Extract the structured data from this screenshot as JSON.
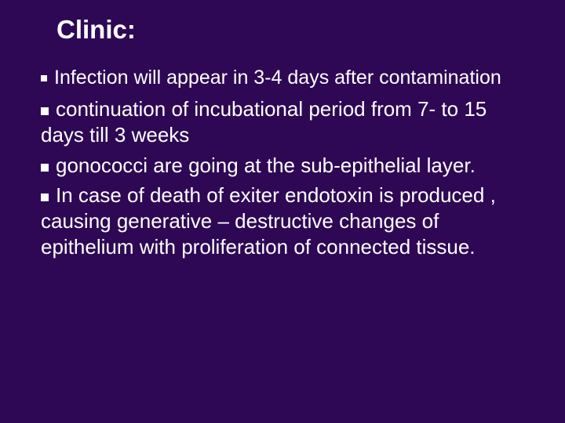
{
  "title": "Clinic:",
  "items": [
    "Infection will appear in 3-4 days after contamination",
    "continuation of incubational period  from    7- to 15 days till  3 weeks",
    "gonococci are going at the sub-epithelial layer.",
    "In case of death of exiter endotoxin is produced , causing  generative – destructive changes of epithelium with proliferation of connected tissue."
  ],
  "colors": {
    "background": "#2e0854",
    "text": "#ffffff",
    "bullet": "#ffffff"
  }
}
